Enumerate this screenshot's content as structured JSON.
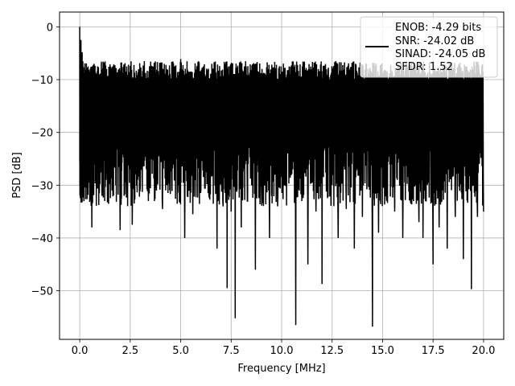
{
  "chart_data": {
    "type": "line",
    "title": "",
    "xlabel": "Frequency [MHz]",
    "ylabel": "PSD [dB]",
    "xlim": [
      -1.0,
      21.0
    ],
    "ylim": [
      -59.2,
      2.8
    ],
    "xticks": [
      0.0,
      2.5,
      5.0,
      7.5,
      10.0,
      12.5,
      15.0,
      17.5,
      20.0
    ],
    "xtick_labels": [
      "0.0",
      "2.5",
      "5.0",
      "7.5",
      "10.0",
      "12.5",
      "15.0",
      "17.5",
      "20.0"
    ],
    "yticks": [
      0,
      -10,
      -20,
      -30,
      -40,
      -50
    ],
    "ytick_labels": [
      "0",
      "−10",
      "−20",
      "−30",
      "−40",
      "−50"
    ],
    "grid": true,
    "series": [
      {
        "name": "ENOB: -4.29 bits\nSNR: -24.02 dB\nSINAD: -24.05 dB\nSFDR: 1.52",
        "color": "#000000",
        "style": "dense noise spectrum between about -7 dB and -35 dB",
        "points": [
          [
            0.0,
            0.0
          ],
          [
            0.03,
            -20.0
          ],
          [
            0.06,
            -2.5
          ],
          [
            0.09,
            -27.6
          ],
          [
            0.12,
            -4.8
          ],
          [
            0.2,
            -24.5
          ],
          [
            0.3,
            -9.0
          ],
          [
            0.4,
            -30.5
          ],
          [
            0.5,
            -8.5
          ],
          [
            0.6,
            -38.0
          ],
          [
            0.7,
            -7.0
          ],
          [
            0.8,
            -25.0
          ],
          [
            0.9,
            -8.2
          ],
          [
            1.1,
            -32.0
          ],
          [
            1.2,
            -8.5
          ],
          [
            1.3,
            -29.0
          ],
          [
            1.5,
            -7.1
          ],
          [
            1.6,
            -31.0
          ],
          [
            1.8,
            -7.8
          ],
          [
            2.0,
            -38.5
          ],
          [
            2.1,
            -9.1
          ],
          [
            2.3,
            -29.5
          ],
          [
            2.5,
            -7.4
          ],
          [
            2.6,
            -37.5
          ],
          [
            2.8,
            -8.3
          ],
          [
            3.0,
            -30.0
          ],
          [
            3.2,
            -6.5
          ],
          [
            3.4,
            -33.0
          ],
          [
            3.6,
            -8.0
          ],
          [
            3.8,
            -31.0
          ],
          [
            3.9,
            -9.2
          ],
          [
            4.1,
            -34.5
          ],
          [
            4.3,
            -8.0
          ],
          [
            4.5,
            -27.0
          ],
          [
            4.7,
            -7.5
          ],
          [
            4.9,
            -30.0
          ],
          [
            5.0,
            -6.1
          ],
          [
            5.2,
            -40.0
          ],
          [
            5.4,
            -8.5
          ],
          [
            5.6,
            -35.5
          ],
          [
            5.8,
            -7.5
          ],
          [
            6.0,
            -31.0
          ],
          [
            6.2,
            -9.0
          ],
          [
            6.4,
            -32.0
          ],
          [
            6.6,
            -7.9
          ],
          [
            6.8,
            -42.0
          ],
          [
            6.9,
            -10.5
          ],
          [
            7.1,
            -34.0
          ],
          [
            7.2,
            -8.0
          ],
          [
            7.3,
            -49.5
          ],
          [
            7.4,
            -10.9
          ],
          [
            7.5,
            -35.0
          ],
          [
            7.6,
            -9.5
          ],
          [
            7.7,
            -55.2
          ],
          [
            7.8,
            -8.1
          ],
          [
            8.0,
            -38.0
          ],
          [
            8.1,
            -9.0
          ],
          [
            8.3,
            -33.0
          ],
          [
            8.5,
            -8.2
          ],
          [
            8.7,
            -46.0
          ],
          [
            8.8,
            -10.0
          ],
          [
            9.0,
            -31.0
          ],
          [
            9.2,
            -9.5
          ],
          [
            9.4,
            -40.0
          ],
          [
            9.6,
            -7.7
          ],
          [
            9.8,
            -34.0
          ],
          [
            10.0,
            -8.5
          ],
          [
            10.2,
            -30.0
          ],
          [
            10.4,
            -9.0
          ],
          [
            10.7,
            -56.5
          ],
          [
            10.8,
            -9.8
          ],
          [
            11.0,
            -33.0
          ],
          [
            11.1,
            -7.6
          ],
          [
            11.3,
            -45.0
          ],
          [
            11.5,
            -8.0
          ],
          [
            11.7,
            -35.0
          ],
          [
            11.9,
            -9.0
          ],
          [
            12.0,
            -48.7
          ],
          [
            12.2,
            -8.0
          ],
          [
            12.4,
            -32.0
          ],
          [
            12.6,
            -9.8
          ],
          [
            12.8,
            -40.0
          ],
          [
            13.0,
            -8.5
          ],
          [
            13.2,
            -34.5
          ],
          [
            13.4,
            -7.8
          ],
          [
            13.6,
            -42.0
          ],
          [
            13.8,
            -9.2
          ],
          [
            14.0,
            -36.0
          ],
          [
            14.2,
            -7.1
          ],
          [
            14.5,
            -56.8
          ],
          [
            14.6,
            -10.5
          ],
          [
            14.8,
            -39.0
          ],
          [
            15.0,
            -8.7
          ],
          [
            15.2,
            -33.0
          ],
          [
            15.4,
            -7.2
          ],
          [
            15.6,
            -35.0
          ],
          [
            15.8,
            -8.3
          ],
          [
            16.0,
            -40.0
          ],
          [
            16.2,
            -7.0
          ],
          [
            16.4,
            -33.5
          ],
          [
            16.6,
            -8.5
          ],
          [
            16.8,
            -37.0
          ],
          [
            16.9,
            -8.7
          ],
          [
            17.0,
            -40.0
          ],
          [
            17.2,
            -9.0
          ],
          [
            17.5,
            -45.0
          ],
          [
            17.6,
            -9.8
          ],
          [
            17.8,
            -38.0
          ],
          [
            18.0,
            -7.5
          ],
          [
            18.2,
            -42.0
          ],
          [
            18.4,
            -8.8
          ],
          [
            18.6,
            -36.0
          ],
          [
            18.8,
            -9.0
          ],
          [
            19.0,
            -44.0
          ],
          [
            19.2,
            -8.2
          ],
          [
            19.4,
            -49.7
          ],
          [
            19.5,
            -10.0
          ],
          [
            19.7,
            -36.0
          ],
          [
            19.8,
            -8.7
          ],
          [
            20.0,
            -35.0
          ]
        ]
      }
    ],
    "legend": {
      "placement": "top-right",
      "lines": [
        "ENOB: -4.29 bits",
        "SNR: -24.02 dB",
        "SINAD: -24.05 dB",
        "SFDR: 1.52"
      ]
    }
  }
}
